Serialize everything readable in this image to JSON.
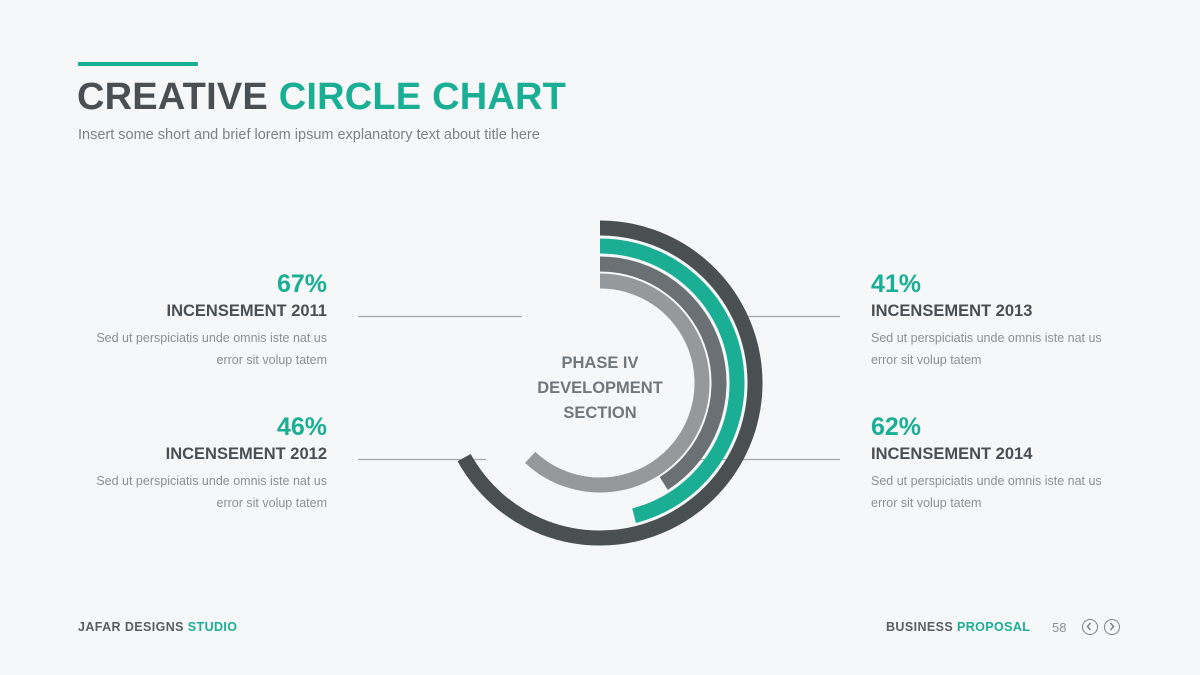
{
  "header": {
    "title_part1": "CREATIVE",
    "title_part2": "CIRCLE CHART",
    "subtitle": "Insert some short and brief lorem ipsum explanatory text about title here"
  },
  "chart_data": {
    "type": "radial-bar",
    "center_label": [
      "PHASE IV",
      "DEVELOPMENT",
      "SECTION"
    ],
    "series": [
      {
        "label": "INCENSEMENT 2011",
        "value": 67,
        "display": "67%",
        "description": "Sed ut perspiciatis unde omnis iste nat us error sit volup tatem",
        "color": "#4a4f51"
      },
      {
        "label": "INCENSEMENT 2012",
        "value": 46,
        "display": "46%",
        "description": "Sed ut perspiciatis unde omnis iste nat us error sit volup tatem",
        "color": "#1aae95"
      },
      {
        "label": "INCENSEMENT 2013",
        "value": 41,
        "display": "41%",
        "description": "Sed ut perspiciatis unde omnis iste nat us error sit volup tatem",
        "color": "#6b7074"
      },
      {
        "label": "INCENSEMENT 2014",
        "value": 62,
        "display": "62%",
        "description": "Sed ut perspiciatis unde omnis iste nat us error sit volup tatem",
        "color": "#95999c"
      }
    ]
  },
  "footer": {
    "brand_part1": "JAFAR DESIGNS",
    "brand_part2": "STUDIO",
    "doc_part1": "BUSINESS",
    "doc_part2": "PROPOSAL",
    "page": "58",
    "prev_icon": "chevron-left-icon",
    "next_icon": "chevron-right-icon"
  }
}
